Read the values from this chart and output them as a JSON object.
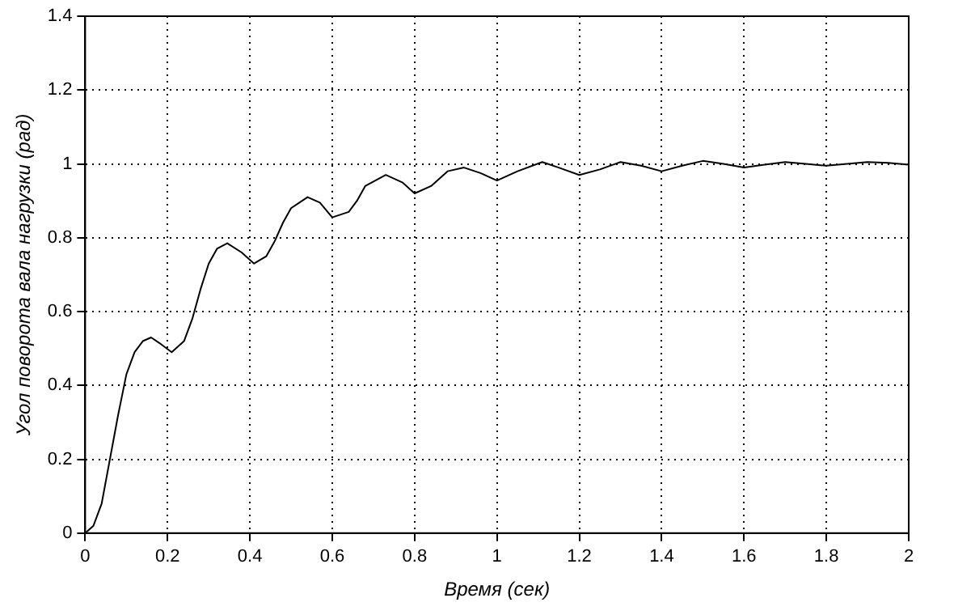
{
  "chart_data": {
    "type": "line",
    "xlabel": "Время (сек)",
    "ylabel": "Угол поворота вала нагрузки (рад)",
    "x": [
      0,
      0.02,
      0.04,
      0.06,
      0.08,
      0.1,
      0.12,
      0.14,
      0.16,
      0.18,
      0.21,
      0.24,
      0.26,
      0.28,
      0.3,
      0.32,
      0.345,
      0.38,
      0.41,
      0.44,
      0.46,
      0.48,
      0.5,
      0.54,
      0.57,
      0.6,
      0.64,
      0.66,
      0.68,
      0.73,
      0.77,
      0.8,
      0.84,
      0.88,
      0.92,
      0.96,
      1.0,
      1.05,
      1.11,
      1.15,
      1.2,
      1.25,
      1.3,
      1.35,
      1.4,
      1.45,
      1.5,
      1.55,
      1.6,
      1.65,
      1.7,
      1.75,
      1.8,
      1.85,
      1.9,
      1.95,
      2.0
    ],
    "series": [
      {
        "color": "#000000",
        "values": [
          0,
          0.02,
          0.08,
          0.2,
          0.32,
          0.43,
          0.49,
          0.52,
          0.53,
          0.515,
          0.49,
          0.52,
          0.58,
          0.66,
          0.73,
          0.77,
          0.785,
          0.76,
          0.73,
          0.75,
          0.79,
          0.84,
          0.88,
          0.91,
          0.895,
          0.855,
          0.87,
          0.9,
          0.94,
          0.97,
          0.95,
          0.92,
          0.94,
          0.98,
          0.99,
          0.975,
          0.955,
          0.98,
          1.005,
          0.99,
          0.97,
          0.985,
          1.005,
          0.995,
          0.98,
          0.995,
          1.008,
          1.0,
          0.99,
          0.998,
          1.005,
          1.0,
          0.995,
          1.0,
          1.005,
          1.003,
          0.998
        ]
      }
    ],
    "xlim": [
      0,
      2
    ],
    "xticks": [
      0,
      0.2,
      0.4,
      0.6,
      0.8,
      1,
      1.2,
      1.4,
      1.6,
      1.8,
      2
    ],
    "ylim": [
      0,
      1.4
    ],
    "yticks": [
      0,
      0.2,
      0.4,
      0.6,
      0.8,
      1,
      1.2,
      1.4
    ],
    "grid": true,
    "legend": false,
    "marker": "none",
    "line_style": "solid"
  }
}
